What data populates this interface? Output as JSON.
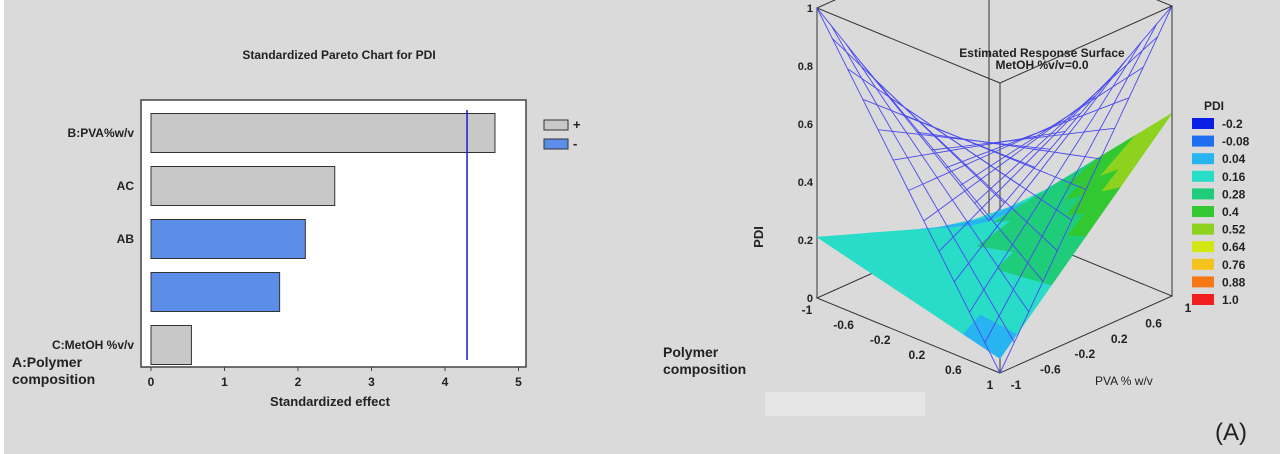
{
  "panel_label": "(A)",
  "chart_data": [
    {
      "type": "bar",
      "orientation": "horizontal",
      "title": "Standardized Pareto Chart for PDI",
      "xlabel": "Standardized effect",
      "ylabel": "",
      "xlim": [
        0,
        5
      ],
      "xticks": [
        "0",
        "1",
        "2",
        "3",
        "4",
        "5"
      ],
      "categories": [
        "B:PVA%w/v",
        "AC",
        "AB",
        "A:Polymer composition",
        "C:MetOH %v/v"
      ],
      "values": [
        4.68,
        2.5,
        2.1,
        1.75,
        0.55
      ],
      "signs": [
        "+",
        "+",
        "-",
        "-",
        "+"
      ],
      "reference_line": 4.3,
      "legend": {
        "position": "top-right",
        "entries": [
          {
            "label": "+",
            "color": "#c8c8c8"
          },
          {
            "label": "-",
            "color": "#5b8ee6"
          }
        ]
      }
    },
    {
      "type": "surface",
      "title": "Estimated Response Surface",
      "subtitle": "MetOH %v/v=0.0",
      "zlabel": "PDI",
      "xlabel": "Polymer composition",
      "ylabel": "PVA % w/v",
      "xlim": [
        -1,
        1
      ],
      "ylim": [
        -1,
        1
      ],
      "zlim": [
        0,
        1
      ],
      "xticks": [
        "-1",
        "-0.6",
        "-0.2",
        "0.2",
        "0.6",
        "1"
      ],
      "yticks": [
        "-1",
        "-0.6",
        "-0.2",
        "0.2",
        "0.6",
        "1"
      ],
      "zticks": [
        "0",
        "0.2",
        "0.4",
        "0.6",
        "0.8",
        "1"
      ],
      "grid": true,
      "legend": {
        "title": "PDI",
        "position": "right",
        "entries": [
          {
            "label": "-0.2",
            "color": "#0a1ee6"
          },
          {
            "label": "-0.08",
            "color": "#1e6ef0"
          },
          {
            "label": "0.04",
            "color": "#28b4f0"
          },
          {
            "label": "0.16",
            "color": "#28dcc8"
          },
          {
            "label": "0.28",
            "color": "#1ecc7a"
          },
          {
            "label": "0.4",
            "color": "#32c832"
          },
          {
            "label": "0.52",
            "color": "#8cd21e"
          },
          {
            "label": "0.64",
            "color": "#d2e614"
          },
          {
            "label": "0.76",
            "color": "#f5c31e"
          },
          {
            "label": "0.88",
            "color": "#f57814"
          },
          {
            "label": "1.0",
            "color": "#f01e1e"
          }
        ]
      }
    }
  ]
}
